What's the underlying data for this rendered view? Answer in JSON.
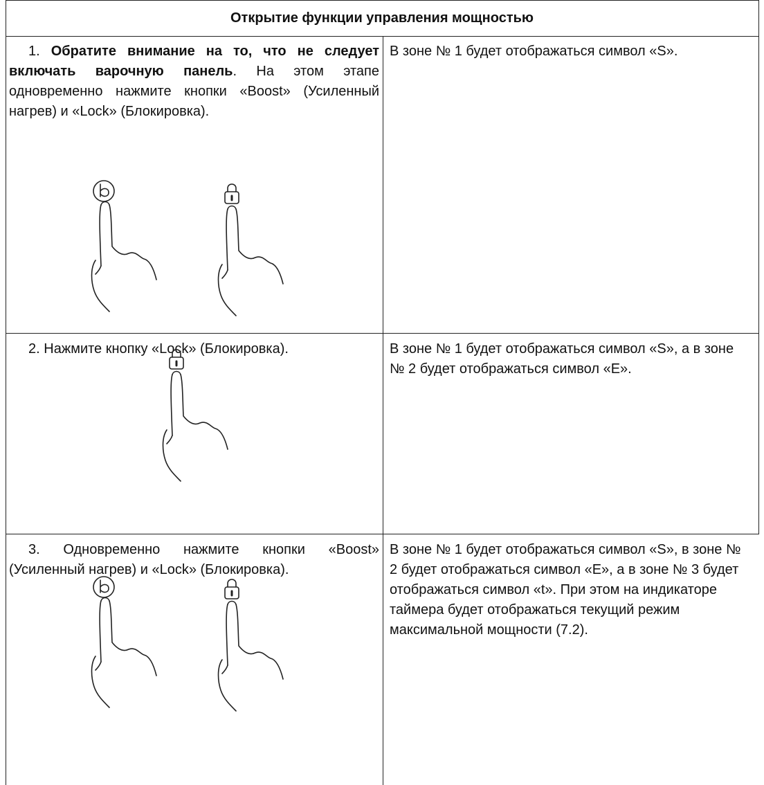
{
  "header": {
    "title": "Открытие функции управления мощностью"
  },
  "table": {
    "rows": [
      {
        "step": "1.",
        "bold": "Обратите внимание на то, что не следует включать варочную панель",
        "text": ". На этом этапе одновременно нажмите кнопки «Boost» (Усиленный нагрев) и «Lock» (Блокировка).",
        "result": "В зоне № 1 будет отображаться символ «S»."
      },
      {
        "step": "2.",
        "text": "Нажмите кнопку «Lock» (Блокировка).",
        "result": "В зоне № 1 будет отображаться символ «S», а в зоне № 2 будет отображаться символ «E»."
      },
      {
        "step": "3.",
        "text": "Одновременно нажмите кнопки «Boost» (Усиленный нагрев) и «Lock» (Блокировка).",
        "result": "В зоне № 1 будет отображаться символ «S», в зоне № 2 будет отображаться символ «E», а в зоне № 3 будет отображаться символ «t». При этом на индикаторе таймера будет отображаться текущий режим максимальной мощности (7.2)."
      }
    ]
  }
}
